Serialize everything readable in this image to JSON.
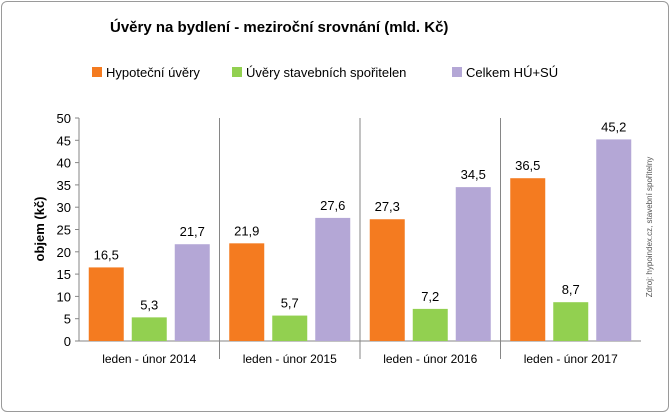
{
  "chart_data": {
    "type": "bar",
    "title": "Úvěry na bydlení - meziroční srovnání (mld. Kč)",
    "ylabel": "objem (kč)",
    "xlabel": "",
    "ylim": [
      0,
      50
    ],
    "yticks": [
      0,
      5,
      10,
      15,
      20,
      25,
      30,
      35,
      40,
      45,
      50
    ],
    "grid": false,
    "legend_position": "top",
    "categories": [
      "leden - únor 2014",
      "leden - únor 2015",
      "leden - únor 2016",
      "leden - únor 2017"
    ],
    "series": [
      {
        "name": "Hypoteční úvěry",
        "color": "#f47b20",
        "values": [
          16.5,
          21.9,
          27.3,
          36.5
        ],
        "labels": [
          "16,5",
          "21,9",
          "27,3",
          "36,5"
        ]
      },
      {
        "name": "Úvěry stavebních spořitelen",
        "color": "#92d050",
        "values": [
          5.3,
          5.7,
          7.2,
          8.7
        ],
        "labels": [
          "5,3",
          "5,7",
          "7,2",
          "8,7"
        ]
      },
      {
        "name": "Celkem HÚ+SÚ",
        "color": "#b4a7d6",
        "values": [
          21.7,
          27.6,
          34.5,
          45.2
        ],
        "labels": [
          "21,7",
          "27,6",
          "34,5",
          "45,2"
        ]
      }
    ],
    "source_note": "Zdroj: hypoindex.cz, stavební spořitelny"
  }
}
